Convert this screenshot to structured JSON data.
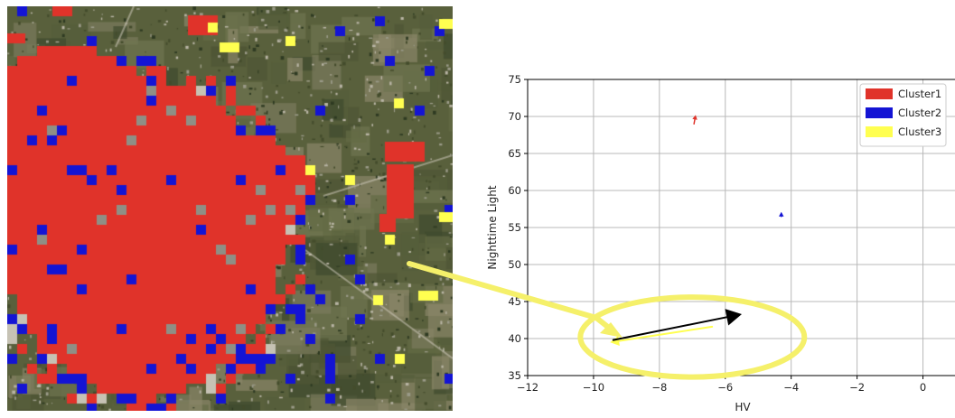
{
  "colors": {
    "cluster1": "#e0332a",
    "cluster2": "#1414d4",
    "cluster3": "#ffff50",
    "grid": "#b8b8b8",
    "callout": "#f5f06a",
    "arrow": "#000000"
  },
  "satellite_map": {
    "icon": "satellite-image",
    "clusters": [
      "cluster1",
      "cluster2",
      "cluster3"
    ]
  },
  "chart_data": {
    "type": "scatter",
    "title": "",
    "xlabel": "HV",
    "ylabel": "Nighttime Light",
    "xlim": [
      -12,
      1.0
    ],
    "ylim": [
      35,
      75
    ],
    "xticks": [
      "−12",
      "−10",
      "−8",
      "−6",
      "−4",
      "−2",
      "0"
    ],
    "yticks": [
      "35",
      "40",
      "45",
      "50",
      "55",
      "60",
      "65",
      "70",
      "75"
    ],
    "grid": true,
    "legend_position": "top-right",
    "series": [
      {
        "name": "Cluster1",
        "color": "#e0332a",
        "start": [
          -6.95,
          69.0
        ],
        "end": [
          -6.9,
          70.2
        ]
      },
      {
        "name": "Cluster2",
        "color": "#1414d4",
        "start": [
          -4.3,
          56.9
        ],
        "end": [
          -4.3,
          57.1
        ]
      },
      {
        "name": "Cluster3",
        "color": "#ffff50",
        "start": [
          -6.4,
          41.6
        ],
        "end": [
          -9.5,
          39.5
        ]
      }
    ],
    "annotations": [
      {
        "type": "arrow",
        "color": "#000000",
        "start": [
          -9.4,
          39.8
        ],
        "end": [
          -5.5,
          43.3
        ]
      },
      {
        "type": "ellipse",
        "color": "#f5f06a",
        "center": [
          -7.0,
          40.2
        ],
        "rx": 3.4,
        "ry": 5.4
      }
    ]
  }
}
